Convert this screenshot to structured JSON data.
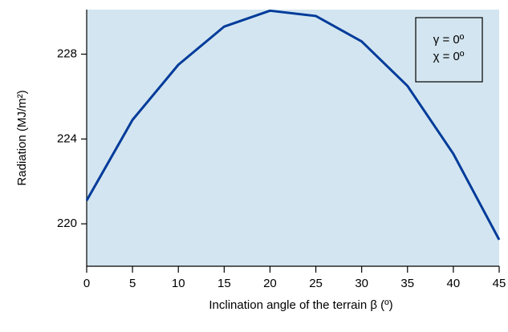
{
  "chart_data": {
    "type": "line",
    "x_label": "Inclination angle of the terrain β (º)",
    "y_label": "Radiation (MJ/m²)",
    "x": [
      0,
      5,
      10,
      15,
      20,
      25,
      30,
      35,
      40,
      45
    ],
    "series": [
      {
        "color": "#003b9a",
        "values": [
          221.1,
          224.9,
          227.5,
          229.3,
          230.05,
          229.8,
          228.6,
          226.5,
          223.3,
          219.25
        ]
      }
    ],
    "xlim": [
      0,
      45
    ],
    "xticks": [
      0,
      5,
      10,
      15,
      20,
      25,
      30,
      35,
      40,
      45
    ],
    "ylim": [
      218,
      230.1
    ],
    "yticks": [
      220,
      224,
      228
    ],
    "background": "#d3e5f0",
    "annotations": [
      "γ = 0º",
      "χ = 0º"
    ]
  }
}
